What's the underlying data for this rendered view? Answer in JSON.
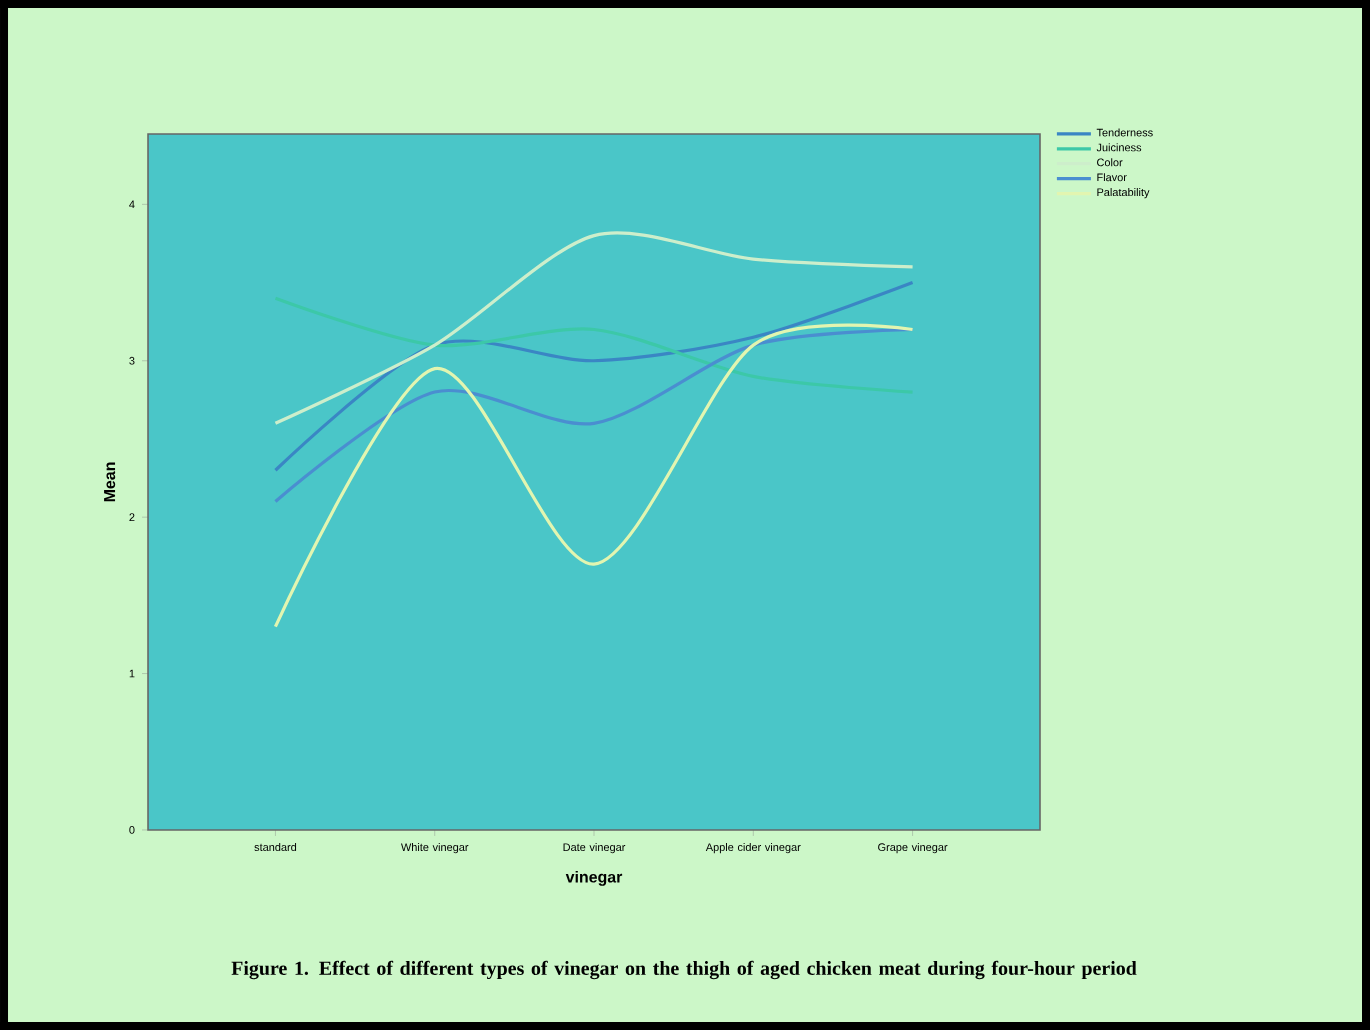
{
  "chart_data": {
    "type": "line",
    "xlabel": "vinegar",
    "ylabel": "Mean",
    "annotations": [
      "Figure 1. Effect of different types of vinegar on the thigh  of aged chicken meat during four-hour period"
    ],
    "categories": [
      "standard",
      "White vinegar",
      "Date vinegar",
      "Apple cider vinegar",
      "Grape vinegar"
    ],
    "series": [
      {
        "name": "Tenderness",
        "color": "#3a86c4",
        "values": [
          2.3,
          3.1,
          3.0,
          3.15,
          3.5
        ]
      },
      {
        "name": "Juiciness",
        "color": "#3cc8a8",
        "values": [
          3.4,
          3.1,
          3.2,
          2.9,
          2.8
        ]
      },
      {
        "name": "Color",
        "color": "#cdeecb",
        "values": [
          2.6,
          3.1,
          3.8,
          3.65,
          3.6
        ]
      },
      {
        "name": "Flavor",
        "color": "#4a8ed0",
        "values": [
          2.1,
          2.8,
          2.6,
          3.1,
          3.2
        ]
      },
      {
        "name": "Palatability",
        "color": "#e2f5b0",
        "values": [
          1.3,
          2.95,
          1.7,
          3.1,
          3.2
        ]
      }
    ],
    "ylim": [
      0,
      4.45
    ],
    "yticks": [
      0,
      1,
      2,
      3,
      4
    ],
    "legend": "top right",
    "grid": false,
    "marker": "none",
    "line_style": "solid"
  }
}
